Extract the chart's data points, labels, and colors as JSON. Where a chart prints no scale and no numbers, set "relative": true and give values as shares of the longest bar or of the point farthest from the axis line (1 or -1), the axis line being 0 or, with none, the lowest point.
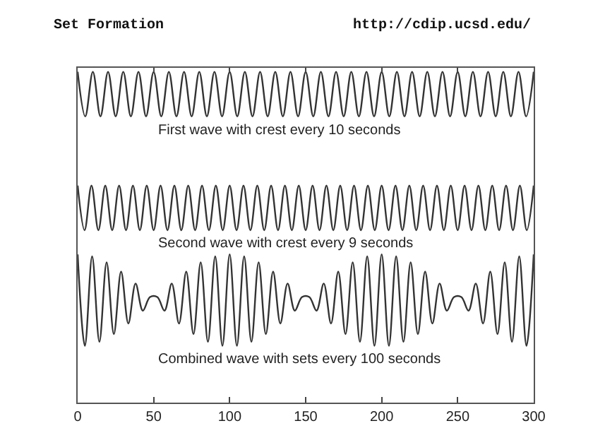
{
  "chart_data": {
    "type": "line",
    "title": "Set Formation",
    "relative": true,
    "grid": false,
    "legend": false,
    "marker": "none",
    "line_style": "solid",
    "tick_labels": "x",
    "annotations": [
      "http://cdip.ucsd.edu/"
    ],
    "xlim": [
      0,
      300
    ],
    "xticks": [
      0,
      50,
      100,
      150,
      200,
      250,
      300
    ],
    "series": [
      {
        "name": "First wave with crest every 10 seconds",
        "color": "#333333",
        "x": [
          0,
          5,
          10,
          15,
          20,
          25,
          30,
          35,
          40,
          45,
          50,
          55,
          60,
          65,
          70,
          75,
          80,
          85,
          90,
          95,
          100,
          105,
          110,
          115,
          120,
          125,
          130,
          135,
          140,
          145,
          150,
          155,
          160,
          165,
          170,
          175,
          180,
          185,
          190,
          195,
          200,
          205,
          210,
          215,
          220,
          225,
          230,
          235,
          240,
          245,
          250,
          255,
          260,
          265,
          270,
          275,
          280,
          285,
          290,
          295,
          300
        ],
        "values": [
          1,
          0.865,
          1,
          0.865,
          1,
          0.865,
          1,
          0.865,
          1,
          0.865,
          1,
          0.865,
          1,
          0.865,
          1,
          0.865,
          1,
          0.865,
          1,
          0.865,
          1,
          0.865,
          1,
          0.865,
          1,
          0.865,
          1,
          0.865,
          1,
          0.865,
          1,
          0.865,
          1,
          0.865,
          1,
          0.865,
          1,
          0.865,
          1,
          0.865,
          1,
          0.865,
          1,
          0.865,
          1,
          0.865,
          1,
          0.865,
          1,
          0.865,
          1,
          0.865,
          1,
          0.865,
          1,
          0.865,
          1,
          0.865,
          1,
          0.865,
          1
        ]
      },
      {
        "name": "Second wave with crest every 9 seconds",
        "color": "#333333",
        "x": [
          0,
          4.55,
          9.09,
          13.64,
          18.18,
          22.73,
          27.27,
          31.82,
          36.36,
          40.91,
          45.45,
          50,
          54.55,
          59.09,
          63.64,
          68.18,
          72.73,
          77.27,
          81.82,
          86.36,
          90.91,
          95.45,
          100,
          104.55,
          109.09,
          113.64,
          118.18,
          122.73,
          127.27,
          131.82,
          136.36,
          140.91,
          145.45,
          150,
          154.55,
          159.09,
          163.64,
          168.18,
          172.73,
          177.27,
          181.82,
          186.36,
          190.91,
          195.45,
          200,
          204.55,
          209.09,
          213.64,
          218.18,
          222.73,
          227.27,
          231.82,
          236.36,
          240.91,
          245.45,
          250,
          254.55,
          259.09,
          263.64,
          268.18,
          272.73,
          277.27,
          281.82,
          286.36,
          290.91,
          295.45,
          300
        ],
        "values": [
          0.656,
          0.521,
          0.656,
          0.521,
          0.656,
          0.521,
          0.656,
          0.521,
          0.656,
          0.521,
          0.656,
          0.521,
          0.656,
          0.521,
          0.656,
          0.521,
          0.656,
          0.521,
          0.656,
          0.521,
          0.656,
          0.521,
          0.656,
          0.521,
          0.656,
          0.521,
          0.656,
          0.521,
          0.656,
          0.521,
          0.656,
          0.521,
          0.656,
          0.521,
          0.656,
          0.521,
          0.656,
          0.521,
          0.656,
          0.521,
          0.656,
          0.521,
          0.656,
          0.521,
          0.656,
          0.521,
          0.656,
          0.521,
          0.656,
          0.521,
          0.656,
          0.521,
          0.656,
          0.521,
          0.656,
          0.521,
          0.656,
          0.521,
          0.656,
          0.521,
          0.656,
          0.521,
          0.656,
          0.521,
          0.656,
          0.521,
          0.656
        ]
      },
      {
        "name": "Combined wave with sets every 100 seconds",
        "color": "#333333",
        "x": [
          0,
          4.76,
          9.52,
          14.29,
          19.05,
          23.81,
          28.57,
          33.33,
          38.1,
          42.86,
          47.62,
          52.38,
          57.14,
          61.9,
          66.67,
          71.43,
          76.19,
          80.95,
          85.71,
          90.48,
          95.24,
          100,
          104.76,
          109.52,
          114.29,
          119.05,
          123.81,
          128.57,
          133.33,
          138.1,
          142.86,
          147.62,
          152.38,
          157.14,
          161.9,
          166.67,
          171.43,
          176.19,
          180.95,
          185.71,
          190.48,
          195.24,
          200,
          204.76,
          209.52,
          214.29,
          219.05,
          223.81,
          228.57,
          233.33,
          238.1,
          242.86,
          247.62,
          252.38,
          257.14,
          261.9,
          266.67,
          271.43,
          276.19,
          280.95,
          285.71,
          290.48,
          295.24,
          300
        ],
        "values": [
          0.448,
          0.172,
          0.442,
          0.184,
          0.424,
          0.207,
          0.396,
          0.239,
          0.36,
          0.278,
          0.319,
          0.319,
          0.278,
          0.36,
          0.239,
          0.396,
          0.207,
          0.424,
          0.184,
          0.442,
          0.172,
          0.448,
          0.172,
          0.442,
          0.184,
          0.424,
          0.207,
          0.396,
          0.239,
          0.36,
          0.278,
          0.319,
          0.319,
          0.278,
          0.36,
          0.239,
          0.396,
          0.207,
          0.424,
          0.184,
          0.442,
          0.172,
          0.448,
          0.172,
          0.442,
          0.184,
          0.424,
          0.207,
          0.396,
          0.239,
          0.36,
          0.278,
          0.319,
          0.319,
          0.278,
          0.36,
          0.239,
          0.396,
          0.207,
          0.424,
          0.184,
          0.442,
          0.172,
          0.448
        ]
      }
    ]
  }
}
